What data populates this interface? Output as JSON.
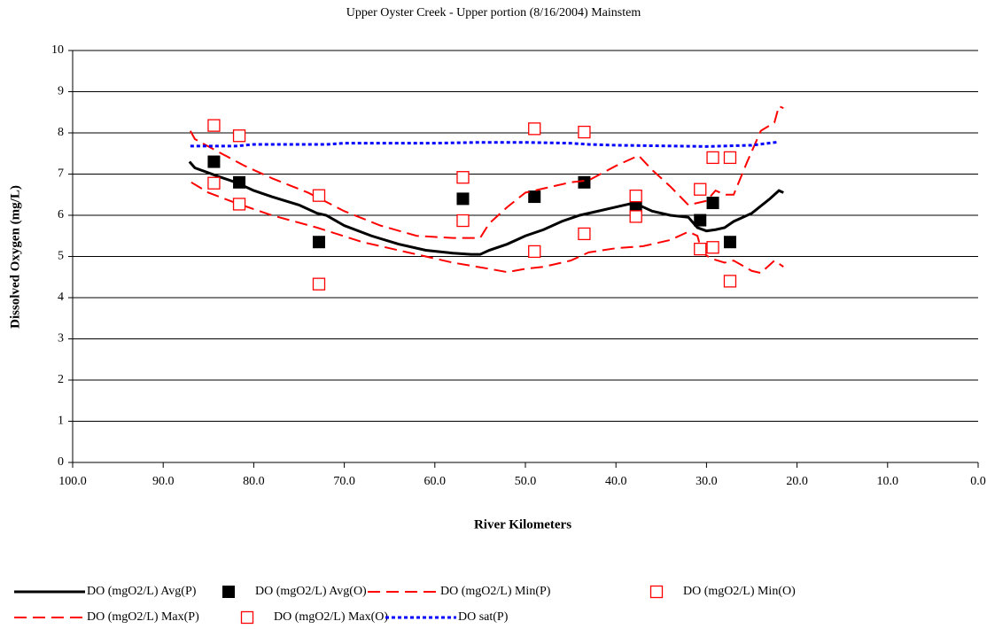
{
  "chart_data": {
    "type": "line",
    "title": "Upper Oyster Creek - Upper portion (8/16/2004) Mainstem",
    "x_label": "River Kilometers",
    "y_label": "Dissolved Oxygen (mg/L)",
    "xlim": [
      100,
      0
    ],
    "xticks": [
      {
        "value": 100,
        "label": "100.0"
      },
      {
        "value": 90,
        "label": "90.0"
      },
      {
        "value": 80,
        "label": "80.0"
      },
      {
        "value": 70,
        "label": "70.0"
      },
      {
        "value": 60,
        "label": "60.0"
      },
      {
        "value": 50,
        "label": "50.0"
      },
      {
        "value": 40,
        "label": "40.0"
      },
      {
        "value": 30,
        "label": "30.0"
      },
      {
        "value": 20,
        "label": "20.0"
      },
      {
        "value": 10,
        "label": "10.0"
      },
      {
        "value": 0,
        "label": "0.0"
      }
    ],
    "ylim": [
      0,
      10
    ],
    "yticks": [
      0,
      1,
      2,
      3,
      4,
      5,
      6,
      7,
      8,
      9,
      10
    ],
    "grid": true,
    "legend": "bottom",
    "series": [
      {
        "name": "DO (mgO2/L) Avg(P)",
        "color": "#000000",
        "style": "solid",
        "x": [
          87.1,
          86.5,
          84,
          82,
          80,
          78,
          75,
          73,
          72,
          70,
          67,
          64,
          61,
          58,
          56,
          55,
          54,
          52,
          50,
          48,
          46,
          44,
          42,
          40,
          38,
          36,
          34,
          32,
          31,
          30,
          29,
          28,
          27,
          25,
          23,
          22,
          21.5
        ],
        "values": [
          7.3,
          7.15,
          6.95,
          6.8,
          6.6,
          6.45,
          6.25,
          6.05,
          6.0,
          5.75,
          5.5,
          5.3,
          5.15,
          5.08,
          5.05,
          5.05,
          5.15,
          5.3,
          5.5,
          5.65,
          5.85,
          6.0,
          6.1,
          6.2,
          6.3,
          6.1,
          6.0,
          5.95,
          5.7,
          5.62,
          5.65,
          5.7,
          5.85,
          6.05,
          6.4,
          6.6,
          6.55
        ]
      },
      {
        "name": "DO (mgO2/L)  Avg(O)",
        "color": "#000000",
        "marker": "filled-square",
        "x": [
          84.4,
          81.6,
          72.8,
          56.9,
          49.0,
          43.5,
          37.8,
          30.7,
          29.3,
          27.4
        ],
        "values": [
          7.3,
          6.8,
          5.35,
          6.4,
          6.45,
          6.8,
          6.2,
          5.88,
          6.3,
          5.35
        ]
      },
      {
        "name": "DO (mgO2/L) Min(P)",
        "color": "#ff0000",
        "style": "dashed",
        "x": [
          86.9,
          85,
          82,
          78,
          73,
          68,
          63,
          58,
          54,
          52,
          50,
          48,
          45,
          43,
          40,
          37,
          34,
          32,
          31,
          30.5,
          29.5,
          28,
          27,
          25,
          24,
          22.5,
          21.5
        ],
        "values": [
          6.8,
          6.55,
          6.3,
          6.0,
          5.7,
          5.35,
          5.1,
          4.85,
          4.7,
          4.62,
          4.7,
          4.75,
          4.9,
          5.1,
          5.2,
          5.25,
          5.4,
          5.6,
          5.5,
          5.1,
          4.95,
          4.85,
          4.9,
          4.65,
          4.6,
          4.9,
          4.75
        ]
      },
      {
        "name": "DO (mgO2/L)  Min(O)",
        "color": "#ff0000",
        "marker": "open-square",
        "x": [
          84.4,
          81.6,
          72.8,
          56.9,
          49.0,
          43.5,
          37.8,
          30.7,
          29.3,
          27.4
        ],
        "values": [
          6.78,
          6.27,
          4.33,
          5.87,
          5.12,
          5.55,
          5.97,
          5.18,
          5.22,
          4.4
        ]
      },
      {
        "name": "DO (mgO2/L) Max(P)",
        "color": "#ff0000",
        "style": "dashed",
        "x": [
          87,
          86.5,
          84,
          81,
          78,
          74,
          70,
          66,
          62,
          58,
          55,
          54,
          52,
          50,
          48,
          45,
          43,
          40,
          37.5,
          36,
          34,
          32,
          30,
          29,
          28,
          27,
          25.5,
          24,
          22.5,
          22,
          21.5
        ],
        "values": [
          8.05,
          7.85,
          7.55,
          7.2,
          6.9,
          6.55,
          6.1,
          5.75,
          5.5,
          5.45,
          5.45,
          5.8,
          6.2,
          6.55,
          6.65,
          6.8,
          6.85,
          7.2,
          7.45,
          7.1,
          6.7,
          6.25,
          6.35,
          6.6,
          6.5,
          6.5,
          7.3,
          8.05,
          8.25,
          8.65,
          8.6
        ]
      },
      {
        "name": "DO (mgO2/L)  Max(O)",
        "color": "#ff0000",
        "marker": "open-square",
        "x": [
          84.4,
          81.6,
          72.8,
          56.9,
          49.0,
          43.5,
          37.8,
          30.7,
          29.3,
          27.4
        ],
        "values": [
          8.18,
          7.93,
          6.48,
          6.92,
          8.1,
          8.02,
          6.47,
          6.63,
          7.4,
          7.4
        ]
      },
      {
        "name": "DO sat(P)",
        "color": "#0000ff",
        "style": "dotted",
        "x": [
          87,
          82,
          80,
          75,
          72,
          70,
          60,
          55,
          50,
          45,
          43,
          40,
          30,
          25,
          22
        ],
        "values": [
          7.68,
          7.68,
          7.72,
          7.72,
          7.72,
          7.75,
          7.75,
          7.77,
          7.77,
          7.75,
          7.72,
          7.7,
          7.67,
          7.7,
          7.78
        ]
      }
    ]
  }
}
